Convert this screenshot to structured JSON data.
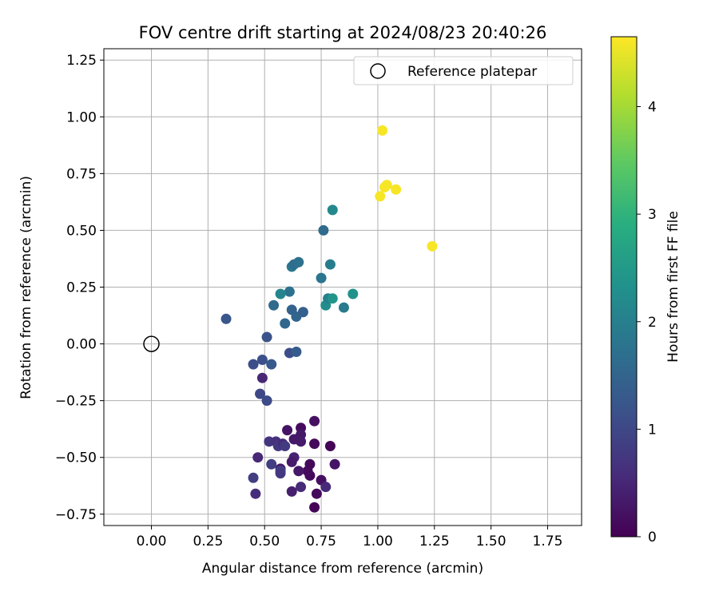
{
  "chart_data": {
    "type": "scatter",
    "title": "FOV centre drift starting at 2024/08/23 20:40:26",
    "xlabel": "Angular distance from reference (arcmin)",
    "ylabel": "Rotation from reference (arcmin)",
    "xlim": [
      -0.21,
      1.9
    ],
    "ylim": [
      -0.8,
      1.3
    ],
    "xticks": [
      0.0,
      0.25,
      0.5,
      0.75,
      1.0,
      1.25,
      1.5,
      1.75
    ],
    "xtick_labels": [
      "0.00",
      "0.25",
      "0.50",
      "0.75",
      "1.00",
      "1.25",
      "1.50",
      "1.75"
    ],
    "yticks": [
      -0.75,
      -0.5,
      -0.25,
      0.0,
      0.25,
      0.5,
      0.75,
      1.0,
      1.25
    ],
    "ytick_labels": [
      "−0.75",
      "−0.50",
      "−0.25",
      "0.00",
      "0.25",
      "0.50",
      "0.75",
      "1.00",
      "1.25"
    ],
    "grid": true,
    "colormap": "viridis",
    "reference": {
      "label": "Reference platepar",
      "x": 0.0,
      "y": 0.0
    },
    "legend": {
      "placement": "top-right",
      "entries": [
        "Reference platepar"
      ]
    },
    "colorbar": {
      "label": "Hours from first FF file",
      "range": [
        0,
        4.65
      ],
      "ticks": [
        0,
        1,
        2,
        3,
        4
      ],
      "tick_labels": [
        "0",
        "1",
        "2",
        "3",
        "4"
      ]
    },
    "points": [
      {
        "x": 0.72,
        "y": -0.72,
        "c": 0.05
      },
      {
        "x": 0.73,
        "y": -0.66,
        "c": 0.1
      },
      {
        "x": 0.7,
        "y": -0.58,
        "c": 0.1
      },
      {
        "x": 0.69,
        "y": -0.56,
        "c": 0.15
      },
      {
        "x": 0.7,
        "y": -0.53,
        "c": 0.1
      },
      {
        "x": 0.75,
        "y": -0.6,
        "c": 0.2
      },
      {
        "x": 0.81,
        "y": -0.53,
        "c": 0.25
      },
      {
        "x": 0.79,
        "y": -0.45,
        "c": 0.05
      },
      {
        "x": 0.72,
        "y": -0.44,
        "c": 0.1
      },
      {
        "x": 0.72,
        "y": -0.34,
        "c": 0.2
      },
      {
        "x": 0.66,
        "y": -0.37,
        "c": 0.15
      },
      {
        "x": 0.66,
        "y": -0.4,
        "c": 0.3
      },
      {
        "x": 0.66,
        "y": -0.43,
        "c": 0.35
      },
      {
        "x": 0.63,
        "y": -0.42,
        "c": 0.3
      },
      {
        "x": 0.6,
        "y": -0.38,
        "c": 0.25
      },
      {
        "x": 0.63,
        "y": -0.5,
        "c": 0.45
      },
      {
        "x": 0.62,
        "y": -0.52,
        "c": 0.35
      },
      {
        "x": 0.65,
        "y": -0.56,
        "c": 0.3
      },
      {
        "x": 0.66,
        "y": -0.63,
        "c": 0.55
      },
      {
        "x": 0.62,
        "y": -0.65,
        "c": 0.4
      },
      {
        "x": 0.77,
        "y": -0.63,
        "c": 0.55
      },
      {
        "x": 0.57,
        "y": -0.55,
        "c": 0.35
      },
      {
        "x": 0.57,
        "y": -0.56,
        "c": 0.9
      },
      {
        "x": 0.57,
        "y": -0.57,
        "c": 0.75
      },
      {
        "x": 0.53,
        "y": -0.53,
        "c": 0.85
      },
      {
        "x": 0.52,
        "y": -0.43,
        "c": 0.7
      },
      {
        "x": 0.55,
        "y": -0.43,
        "c": 0.65
      },
      {
        "x": 0.56,
        "y": -0.45,
        "c": 0.75
      },
      {
        "x": 0.58,
        "y": -0.44,
        "c": 0.55
      },
      {
        "x": 0.59,
        "y": -0.45,
        "c": 0.8
      },
      {
        "x": 0.47,
        "y": -0.5,
        "c": 0.5
      },
      {
        "x": 0.45,
        "y": -0.59,
        "c": 0.85
      },
      {
        "x": 0.46,
        "y": -0.66,
        "c": 0.6
      },
      {
        "x": 0.49,
        "y": -0.15,
        "c": 0.5
      },
      {
        "x": 0.48,
        "y": -0.22,
        "c": 1.0
      },
      {
        "x": 0.51,
        "y": -0.25,
        "c": 1.05
      },
      {
        "x": 0.45,
        "y": -0.09,
        "c": 1.1
      },
      {
        "x": 0.49,
        "y": -0.07,
        "c": 1.15
      },
      {
        "x": 0.53,
        "y": -0.09,
        "c": 1.3
      },
      {
        "x": 0.51,
        "y": 0.03,
        "c": 1.2
      },
      {
        "x": 0.61,
        "y": -0.04,
        "c": 1.1
      },
      {
        "x": 0.64,
        "y": -0.035,
        "c": 1.35
      },
      {
        "x": 0.33,
        "y": 0.11,
        "c": 1.25
      },
      {
        "x": 0.59,
        "y": 0.09,
        "c": 1.55
      },
      {
        "x": 0.54,
        "y": 0.17,
        "c": 1.6
      },
      {
        "x": 0.62,
        "y": 0.15,
        "c": 1.45
      },
      {
        "x": 0.64,
        "y": 0.12,
        "c": 1.5
      },
      {
        "x": 0.67,
        "y": 0.14,
        "c": 1.4
      },
      {
        "x": 0.61,
        "y": 0.23,
        "c": 1.75
      },
      {
        "x": 0.57,
        "y": 0.22,
        "c": 2.1
      },
      {
        "x": 0.62,
        "y": 0.34,
        "c": 1.85
      },
      {
        "x": 0.63,
        "y": 0.35,
        "c": 1.65
      },
      {
        "x": 0.65,
        "y": 0.36,
        "c": 1.75
      },
      {
        "x": 0.75,
        "y": 0.29,
        "c": 1.8
      },
      {
        "x": 0.79,
        "y": 0.35,
        "c": 1.95
      },
      {
        "x": 0.76,
        "y": 0.5,
        "c": 1.6
      },
      {
        "x": 0.8,
        "y": 0.59,
        "c": 2.15
      },
      {
        "x": 0.77,
        "y": 0.17,
        "c": 2.25
      },
      {
        "x": 0.78,
        "y": 0.2,
        "c": 2.0
      },
      {
        "x": 0.8,
        "y": 0.2,
        "c": 2.4
      },
      {
        "x": 0.85,
        "y": 0.16,
        "c": 1.9
      },
      {
        "x": 0.89,
        "y": 0.22,
        "c": 2.35
      },
      {
        "x": 1.02,
        "y": 0.94,
        "c": 4.6
      },
      {
        "x": 1.03,
        "y": 0.69,
        "c": 4.6
      },
      {
        "x": 1.04,
        "y": 0.7,
        "c": 4.6
      },
      {
        "x": 1.08,
        "y": 0.68,
        "c": 4.6
      },
      {
        "x": 1.01,
        "y": 0.65,
        "c": 4.6
      },
      {
        "x": 1.24,
        "y": 0.43,
        "c": 4.6
      }
    ]
  }
}
